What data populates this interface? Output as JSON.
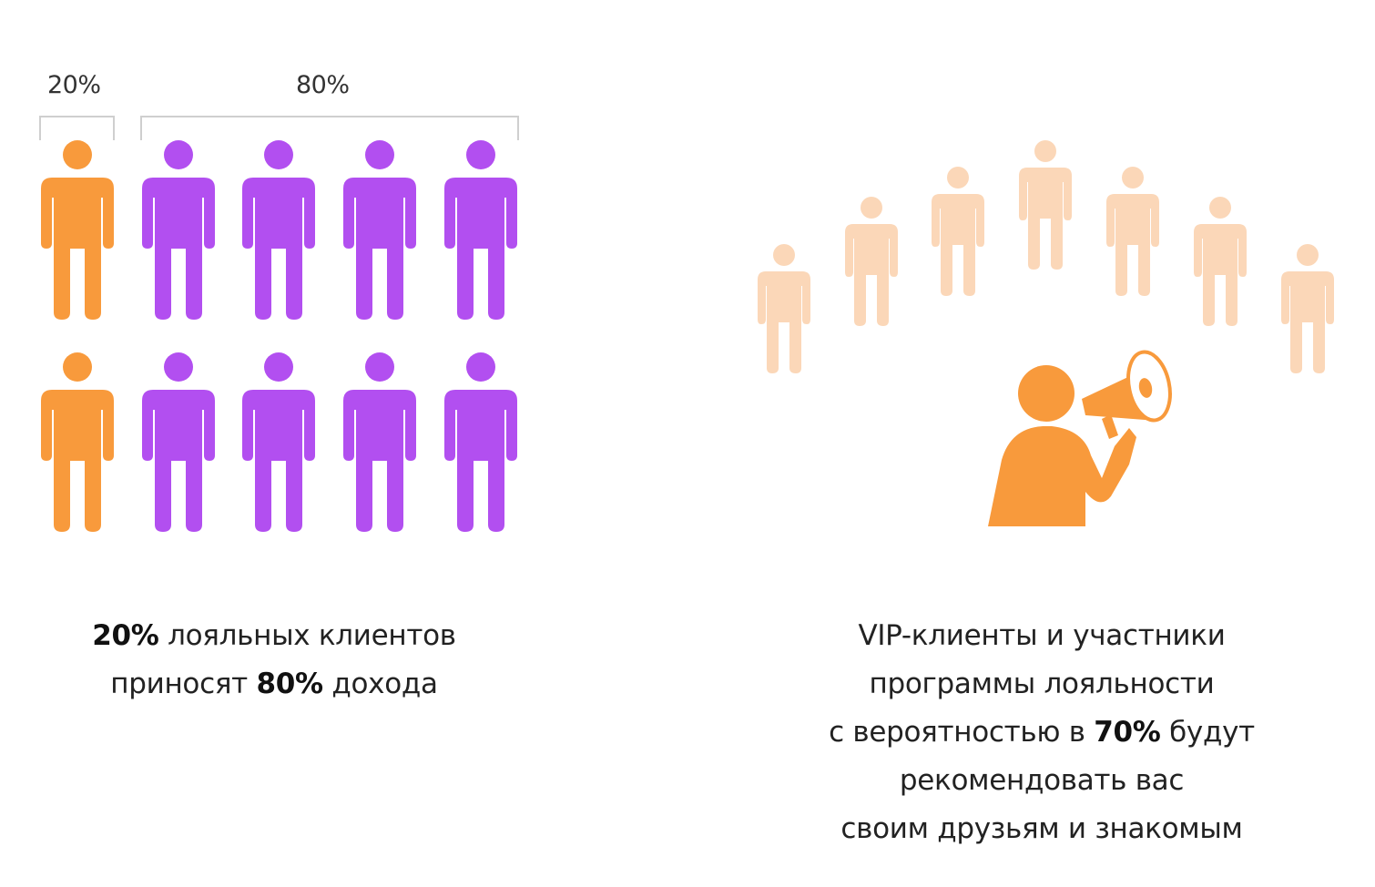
{
  "left": {
    "label_20": "20%",
    "label_80": "80%",
    "rows": 2,
    "columns": 5,
    "highlighted_columns": 1,
    "caption": {
      "line1_bold": "20%",
      "line1_rest": " лояльных клиентов",
      "line2_prefix": "приносят ",
      "line2_bold": "80%",
      "line2_rest": " дохода"
    }
  },
  "right": {
    "crowd_count": 7,
    "caption": {
      "line1": "VIP-клиенты и участники",
      "line2": "программы лояльности",
      "line3_prefix": "с вероятностью в ",
      "line3_bold": "70%",
      "line3_rest": " будут",
      "line4": "рекомендовать вас",
      "line5": "своим друзьям и знакомым"
    }
  },
  "colors": {
    "orange": "#F89A3C",
    "purple": "#B24FF0",
    "peach": "#FBD7B8",
    "bracket": "#CFCFCF"
  },
  "icons": {
    "person": "person-icon",
    "speaker": "speaker-person-icon",
    "megaphone": "megaphone-icon"
  }
}
